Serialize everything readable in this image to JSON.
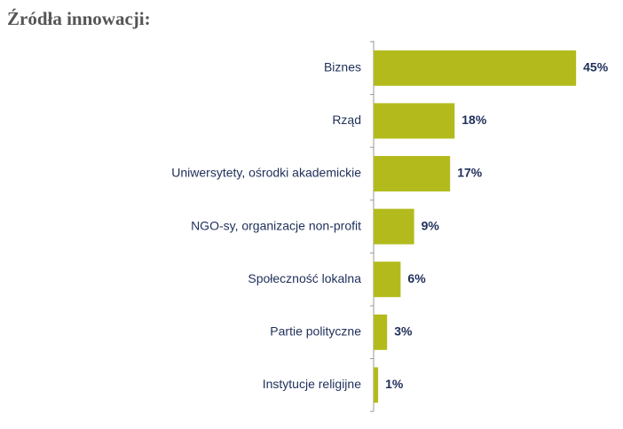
{
  "chart_data": {
    "type": "bar",
    "orientation": "horizontal",
    "title": "Źródła innowacji:",
    "categories": [
      "Biznes",
      "Rząd",
      "Uniwersytety, ośrodki akademickie",
      "NGO-sy, organizacje non-profit",
      "Społeczność lokalna",
      "Partie polityczne",
      "Instytucje religijne"
    ],
    "values": [
      45,
      18,
      17,
      9,
      6,
      3,
      1
    ],
    "value_labels": [
      "45%",
      "18%",
      "17%",
      "9%",
      "6%",
      "3%",
      "1%"
    ],
    "color": "#b3bb1c"
  }
}
